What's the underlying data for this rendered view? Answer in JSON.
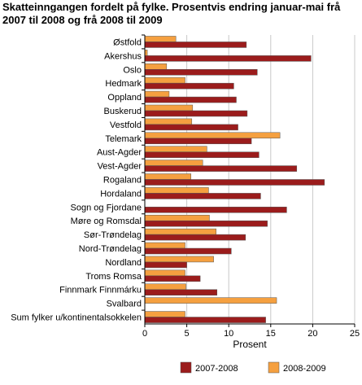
{
  "chart_data": {
    "type": "bar",
    "orientation": "horizontal",
    "title": "Skatteinngangen fordelt på fylke. Prosentvis endring januar-mai frå 2007 til 2008 og frå 2008 til 2009",
    "xlabel": "Prosent",
    "ylabel": "",
    "xlim": [
      0,
      25
    ],
    "xticks": [
      0,
      5,
      10,
      15,
      20,
      25
    ],
    "grid": true,
    "legend_position": "bottom",
    "categories": [
      "Østfold",
      "Akershus",
      "Oslo",
      "Hedmark",
      "Oppland",
      "Buskerud",
      "Vestfold",
      "Telemark",
      "Aust-Agder",
      "Vest-Agder",
      "Rogaland",
      "Hordaland",
      "Sogn og Fjordane",
      "Møre og Romsdal",
      "Sør-Trøndelag",
      "Nord-Trøndelag",
      "Nordland",
      "Troms Romsa",
      "Finnmark Finnmárku",
      "Svalbard",
      "Sum fylker u/kontinentalsokkelen"
    ],
    "series": [
      {
        "name": "2008-2009",
        "color": "#f5a040",
        "values": [
          3.7,
          0.3,
          2.6,
          4.8,
          2.9,
          5.7,
          5.6,
          16.1,
          7.4,
          6.9,
          5.5,
          7.6,
          0,
          7.7,
          8.5,
          4.8,
          8.2,
          4.8,
          4.9,
          15.7,
          4.8
        ]
      },
      {
        "name": "2007-2008",
        "color": "#9b1c1c",
        "values": [
          12.1,
          19.8,
          13.4,
          10.6,
          10.9,
          12.2,
          11.1,
          12.7,
          13.6,
          18.1,
          21.4,
          13.8,
          16.9,
          14.6,
          12.0,
          10.3,
          5.0,
          6.6,
          8.6,
          0,
          14.4
        ]
      }
    ]
  }
}
